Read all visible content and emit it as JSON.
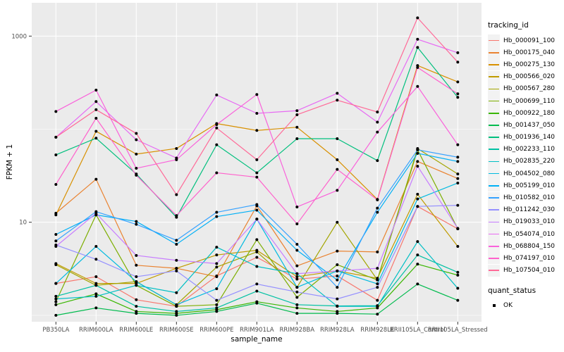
{
  "chart_data": {
    "type": "line",
    "title": "",
    "xlabel": "sample_name",
    "ylabel": "FPKM + 1",
    "y_scale": "log10",
    "ylim": [
      0.9,
      2100
    ],
    "y_ticks": [
      {
        "label": "10",
        "value": 10
      },
      {
        "label": "1000",
        "value": 1000
      }
    ],
    "y_gridlines_major": [
      10,
      1000
    ],
    "y_gridlines_minor": [
      1,
      100
    ],
    "grid": "on",
    "legend_position": "right",
    "panel_color": "#EBEBEB",
    "gridline_color": "#FFFFFF",
    "point_color": "#000000",
    "categories": [
      "PB350LA",
      "RRIM600LA",
      "RRIM600LE",
      "RRIM600SE",
      "RRIM600PE",
      "RRIM901LA",
      "RRIM928BA",
      "RRIM928LA",
      "RRIM928LE",
      "RRII105LA_Control",
      "RRII105LA_Stressed"
    ],
    "series": [
      {
        "name": "Hb_000091_100",
        "color": "#F8766D",
        "values": [
          2.2,
          2.6,
          1.47,
          1.25,
          2.65,
          4.2,
          2.45,
          2.65,
          1.45,
          14.8,
          8.5
        ]
      },
      {
        "name": "Hb_000175_040",
        "color": "#EA8331",
        "values": [
          12.5,
          29,
          3.45,
          3.2,
          2.6,
          15,
          3.4,
          4.9,
          4.8,
          45,
          29.5
        ]
      },
      {
        "name": "Hb_000275_130",
        "color": "#D89000",
        "values": [
          12,
          95,
          54,
          62,
          115,
          97,
          105,
          47,
          17.6,
          483,
          322
        ]
      },
      {
        "name": "Hb_000566_020",
        "color": "#C09B00",
        "values": [
          3.6,
          2.2,
          2.2,
          3.2,
          4.45,
          5.0,
          2.6,
          3.0,
          2.5,
          20,
          5.5
        ]
      },
      {
        "name": "Hb_000567_280",
        "color": "#A3A500",
        "values": [
          3.5,
          2.1,
          2.3,
          1.3,
          3.3,
          4.8,
          2.0,
          10,
          2.4,
          62,
          33
        ]
      },
      {
        "name": "Hb_000699_110",
        "color": "#7CAE00",
        "values": [
          1.4,
          12,
          2.1,
          1.25,
          1.3,
          6.5,
          1.56,
          3.5,
          2.4,
          60,
          8.5
        ]
      },
      {
        "name": "Hb_000922_180",
        "color": "#39B600",
        "values": [
          1.3,
          1.7,
          1.1,
          1.05,
          1.15,
          1.4,
          1.2,
          1.1,
          1.2,
          3.55,
          2.7
        ]
      },
      {
        "name": "Hb_001437_050",
        "color": "#00BB4E",
        "values": [
          1.0,
          1.2,
          1.05,
          1.0,
          1.1,
          1.35,
          1.05,
          1.05,
          1.03,
          2.17,
          1.45
        ]
      },
      {
        "name": "Hb_001936_140",
        "color": "#00BF7D",
        "values": [
          53,
          80,
          33,
          11.3,
          68,
          34,
          79,
          79,
          46,
          755,
          220
        ]
      },
      {
        "name": "Hb_002233_110",
        "color": "#00C1A3",
        "values": [
          1.6,
          2.1,
          1.25,
          1.1,
          1.2,
          1.82,
          1.3,
          1.26,
          1.27,
          4.45,
          2.9
        ]
      },
      {
        "name": "Hb_002835_220",
        "color": "#00BFC4",
        "values": [
          1.5,
          1.6,
          2.1,
          1.75,
          5.4,
          3.35,
          2.8,
          1.25,
          1.25,
          6.2,
          1.95
        ]
      },
      {
        "name": "Hb_004502_080",
        "color": "#00BAE0",
        "values": [
          2.2,
          5.5,
          2.3,
          1.3,
          1.93,
          10.8,
          2.0,
          3.0,
          2.18,
          17.8,
          26.4
        ]
      },
      {
        "name": "Hb_005199_010",
        "color": "#00B0F6",
        "values": [
          7.4,
          12.0,
          10.2,
          5.8,
          11.5,
          13.5,
          5.0,
          2.4,
          12.8,
          55,
          45
        ]
      },
      {
        "name": "Hb_010582_010",
        "color": "#35A2FF",
        "values": [
          6.3,
          13,
          9.5,
          6.4,
          12.8,
          15.5,
          5.8,
          2.0,
          14.2,
          60,
          50
        ]
      },
      {
        "name": "Hb_011242_030",
        "color": "#9590FF",
        "values": [
          5.7,
          4.0,
          2.6,
          3.0,
          1.45,
          2.17,
          1.78,
          1.5,
          2.0,
          14.8,
          15.2
        ]
      },
      {
        "name": "Hb_019033_010",
        "color": "#C77CFF",
        "values": [
          5.5,
          12.5,
          4.4,
          3.9,
          3.6,
          10.8,
          2.8,
          3.0,
          3.2,
          40,
          8.6
        ]
      },
      {
        "name": "Hb_054074_010",
        "color": "#E76BF3",
        "values": [
          82,
          198,
          77,
          49,
          233,
          148,
          158,
          243,
          119,
          925,
          663
        ]
      },
      {
        "name": "Hb_068804_150",
        "color": "#FA62DB",
        "values": [
          155,
          263,
          38,
          47,
          112,
          236,
          14.6,
          22,
          93,
          288,
          68
        ]
      },
      {
        "name": "Hb_074197_010",
        "color": "#FF61CC",
        "values": [
          25.5,
          131,
          32,
          11.8,
          34,
          30.5,
          9.6,
          37,
          17.4,
          460,
          240
        ]
      },
      {
        "name": "Hb_107504_010",
        "color": "#FF6A98",
        "values": [
          82,
          162,
          90,
          19.8,
          103,
          47,
          143,
          205,
          153,
          1570,
          525
        ]
      }
    ]
  },
  "legend": {
    "tracking_title": "tracking_id",
    "quant_title": "quant_status",
    "quant_items": [
      {
        "label": "OK",
        "marker": "black-point"
      }
    ]
  }
}
